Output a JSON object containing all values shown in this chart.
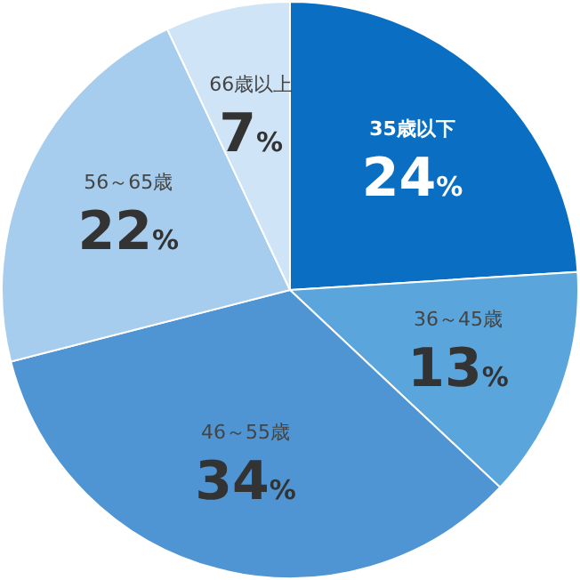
{
  "chart_data": {
    "type": "pie",
    "categories": [
      "35歳以下",
      "36～45歳",
      "46～55歳",
      "56～65歳",
      "66歳以上"
    ],
    "values": [
      24,
      13,
      34,
      22,
      7
    ],
    "colors": [
      "#0a6fc2",
      "#5aa6dc",
      "#4f95d4",
      "#a6cdee",
      "#cfe4f6"
    ],
    "value_labels": [
      "24%",
      "13%",
      "34%",
      "22%",
      "7%"
    ]
  }
}
